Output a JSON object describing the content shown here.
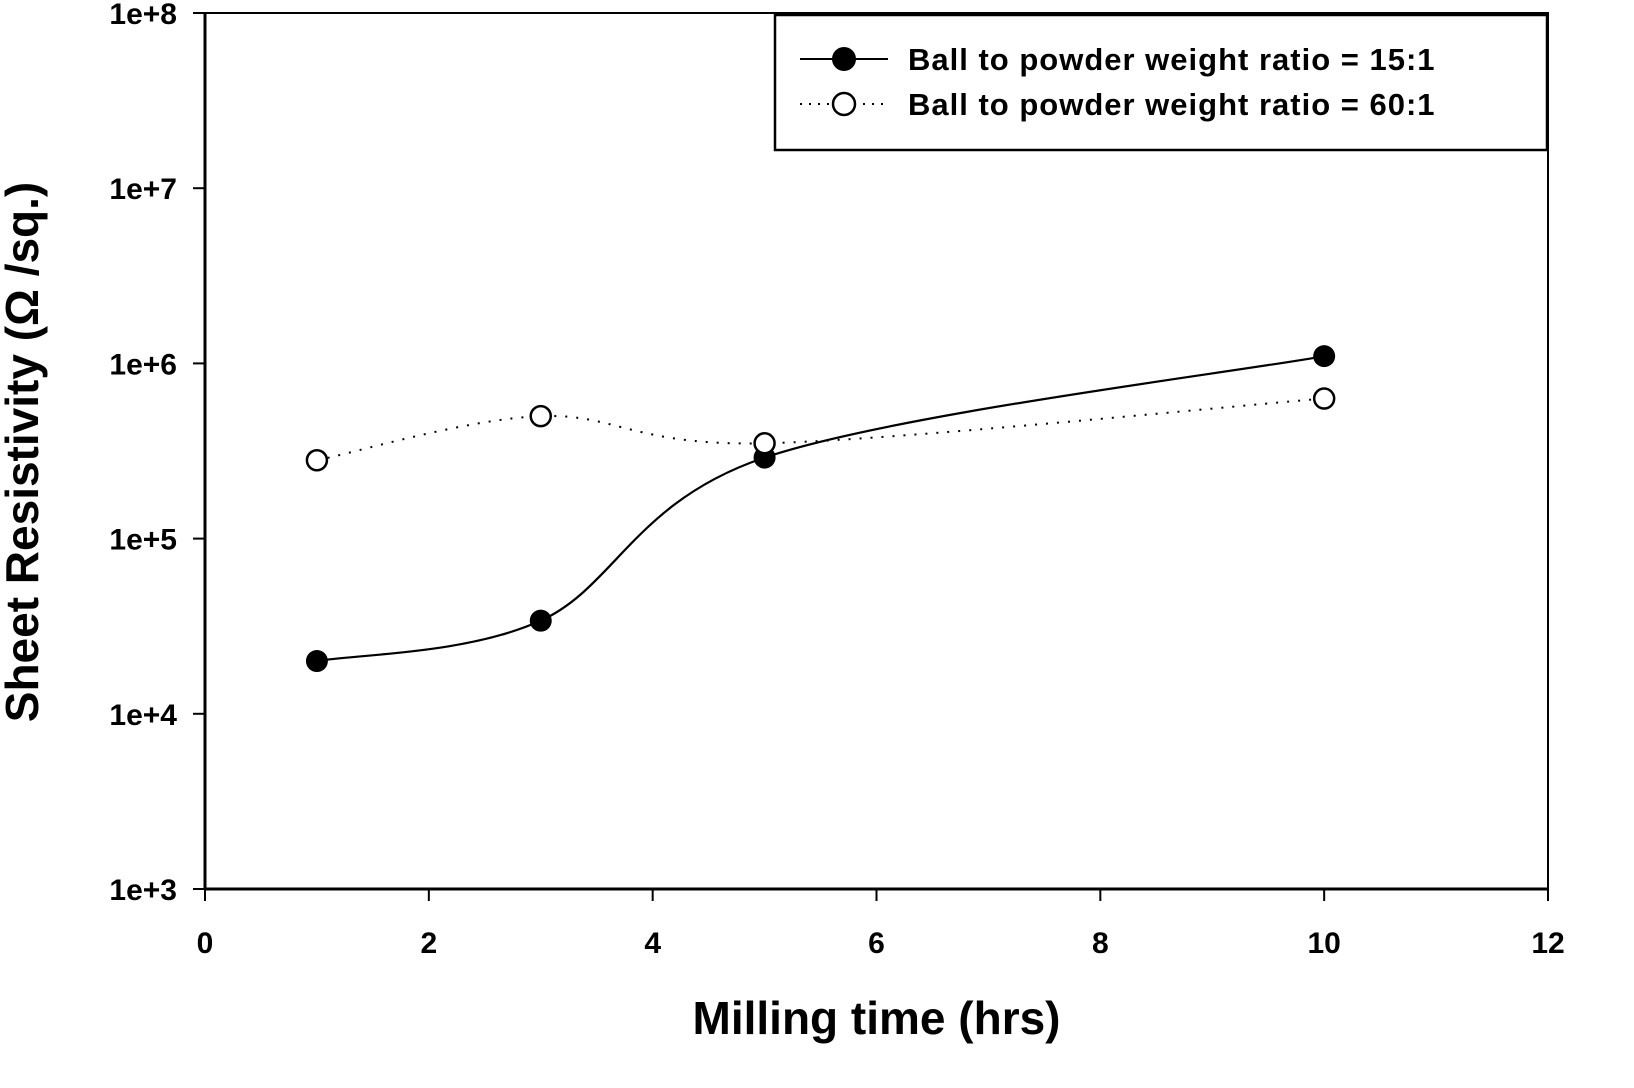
{
  "chart_data": {
    "type": "line",
    "title": "",
    "xlabel": "Milling time (hrs)",
    "ylabel": "Sheet Resistivity (Ω /sq.)",
    "xlim": [
      0,
      12
    ],
    "ylim": [
      1000,
      100000000
    ],
    "yscale": "log",
    "grid": false,
    "legend_position": "top-right",
    "x_ticks": [
      0,
      2,
      4,
      6,
      8,
      10,
      12
    ],
    "x_tick_labels": [
      "0",
      "2",
      "4",
      "6",
      "8",
      "10",
      "12"
    ],
    "y_ticks": [
      1000,
      10000,
      100000,
      1000000,
      10000000,
      100000000
    ],
    "y_tick_labels": [
      "1e+3",
      "1e+4",
      "1e+5",
      "1e+6",
      "1e+7",
      "1e+8"
    ],
    "x": [
      1,
      3,
      5,
      10
    ],
    "series": [
      {
        "name": "Ball to powder weight ratio = 15:1",
        "marker": "filled-circle",
        "line": "solid",
        "color": "#000000",
        "values": [
          20000,
          34000,
          290000,
          1100000
        ]
      },
      {
        "name": "Ball to powder weight ratio = 60:1",
        "marker": "open-circle",
        "line": "dotted",
        "color": "#000000",
        "values": [
          280000,
          500000,
          350000,
          630000
        ]
      }
    ]
  }
}
